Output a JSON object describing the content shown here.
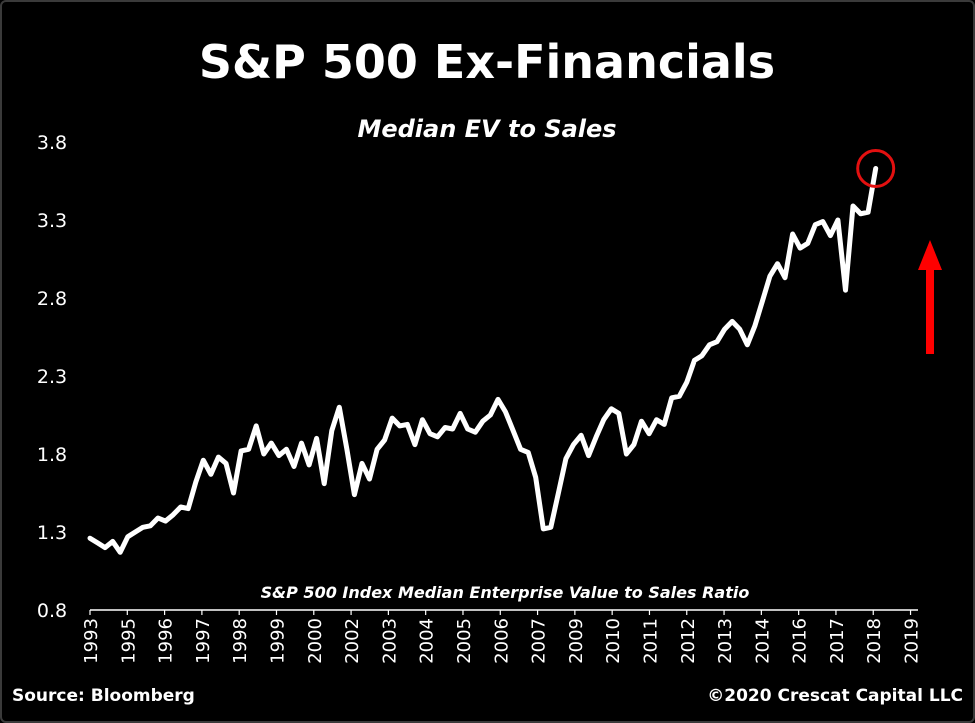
{
  "chart_data": {
    "type": "line",
    "title": "S&P 500 Ex-Financials",
    "subtitle": "Median EV to Sales",
    "annotation": "S&P 500 Index Median Enterprise Value to Sales Ratio",
    "xlabel": "",
    "ylabel": "",
    "ylim": [
      0.8,
      3.8
    ],
    "yticks": [
      "3.8",
      "3.3",
      "2.8",
      "2.3",
      "1.8",
      "1.3",
      "0.8"
    ],
    "xticks": [
      "1993",
      "1995",
      "1996",
      "1997",
      "1998",
      "1999",
      "2000",
      "2002",
      "2003",
      "2004",
      "2005",
      "2006",
      "2007",
      "2009",
      "2010",
      "2011",
      "2012",
      "2013",
      "2014",
      "2016",
      "2017",
      "2018",
      "2019"
    ],
    "grid": false,
    "series": [
      {
        "color": "#ffffff",
        "points": [
          [
            1993.0,
            1.26
          ],
          [
            1993.25,
            1.23
          ],
          [
            1993.5,
            1.2
          ],
          [
            1993.75,
            1.24
          ],
          [
            1994.0,
            1.17
          ],
          [
            1994.25,
            1.27
          ],
          [
            1994.5,
            1.3
          ],
          [
            1994.75,
            1.33
          ],
          [
            1995.0,
            1.34
          ],
          [
            1995.25,
            1.39
          ],
          [
            1995.5,
            1.37
          ],
          [
            1995.75,
            1.41
          ],
          [
            1996.0,
            1.46
          ],
          [
            1996.25,
            1.45
          ],
          [
            1996.5,
            1.62
          ],
          [
            1996.75,
            1.76
          ],
          [
            1997.0,
            1.67
          ],
          [
            1997.25,
            1.78
          ],
          [
            1997.5,
            1.74
          ],
          [
            1997.75,
            1.55
          ],
          [
            1998.0,
            1.82
          ],
          [
            1998.25,
            1.83
          ],
          [
            1998.5,
            1.98
          ],
          [
            1998.75,
            1.8
          ],
          [
            1999.0,
            1.87
          ],
          [
            1999.25,
            1.79
          ],
          [
            1999.5,
            1.83
          ],
          [
            1999.75,
            1.72
          ],
          [
            2000.0,
            1.87
          ],
          [
            2000.25,
            1.73
          ],
          [
            2000.5,
            1.9
          ],
          [
            2000.75,
            1.61
          ],
          [
            2001.0,
            1.95
          ],
          [
            2001.25,
            2.1
          ],
          [
            2001.5,
            1.83
          ],
          [
            2001.75,
            1.54
          ],
          [
            2002.0,
            1.74
          ],
          [
            2002.25,
            1.64
          ],
          [
            2002.5,
            1.83
          ],
          [
            2002.75,
            1.89
          ],
          [
            2003.0,
            2.03
          ],
          [
            2003.25,
            1.98
          ],
          [
            2003.5,
            1.99
          ],
          [
            2003.75,
            1.86
          ],
          [
            2004.0,
            2.02
          ],
          [
            2004.25,
            1.93
          ],
          [
            2004.5,
            1.91
          ],
          [
            2004.75,
            1.97
          ],
          [
            2005.0,
            1.96
          ],
          [
            2005.25,
            2.06
          ],
          [
            2005.5,
            1.96
          ],
          [
            2005.75,
            1.94
          ],
          [
            2006.0,
            2.01
          ],
          [
            2006.25,
            2.05
          ],
          [
            2006.5,
            2.15
          ],
          [
            2006.75,
            2.07
          ],
          [
            2007.0,
            1.95
          ],
          [
            2007.25,
            1.83
          ],
          [
            2007.5,
            1.81
          ],
          [
            2007.75,
            1.65
          ],
          [
            2008.0,
            1.32
          ],
          [
            2008.25,
            1.33
          ],
          [
            2008.5,
            1.55
          ],
          [
            2008.75,
            1.77
          ],
          [
            2009.0,
            1.86
          ],
          [
            2009.25,
            1.92
          ],
          [
            2009.5,
            1.79
          ],
          [
            2009.75,
            1.91
          ],
          [
            2010.0,
            2.02
          ],
          [
            2010.25,
            2.09
          ],
          [
            2010.5,
            2.06
          ],
          [
            2010.75,
            1.8
          ],
          [
            2011.0,
            1.86
          ],
          [
            2011.25,
            2.01
          ],
          [
            2011.5,
            1.93
          ],
          [
            2011.75,
            2.02
          ],
          [
            2012.0,
            1.99
          ],
          [
            2012.25,
            2.16
          ],
          [
            2012.5,
            2.17
          ],
          [
            2012.75,
            2.26
          ],
          [
            2013.0,
            2.4
          ],
          [
            2013.25,
            2.43
          ],
          [
            2013.5,
            2.5
          ],
          [
            2013.75,
            2.52
          ],
          [
            2014.0,
            2.6
          ],
          [
            2014.25,
            2.65
          ],
          [
            2014.5,
            2.6
          ],
          [
            2014.75,
            2.5
          ],
          [
            2015.0,
            2.62
          ],
          [
            2015.25,
            2.78
          ],
          [
            2015.5,
            2.94
          ],
          [
            2015.75,
            3.02
          ],
          [
            2016.0,
            2.93
          ],
          [
            2016.25,
            3.21
          ],
          [
            2016.5,
            3.12
          ],
          [
            2016.75,
            3.15
          ],
          [
            2017.0,
            3.27
          ],
          [
            2017.25,
            3.29
          ],
          [
            2017.5,
            3.2
          ],
          [
            2017.75,
            3.3
          ],
          [
            2018.0,
            2.85
          ],
          [
            2018.25,
            3.39
          ],
          [
            2018.5,
            3.34
          ],
          [
            2018.75,
            3.35
          ],
          [
            2019.0,
            3.63
          ]
        ]
      }
    ]
  },
  "highlight": {
    "x": 2019.0,
    "y": 3.63,
    "color": "#e31010"
  },
  "arrow_color": "#ff0000",
  "footer": {
    "source": "Source: Bloomberg",
    "copyright": "©2020 Crescat Capital LLC"
  }
}
